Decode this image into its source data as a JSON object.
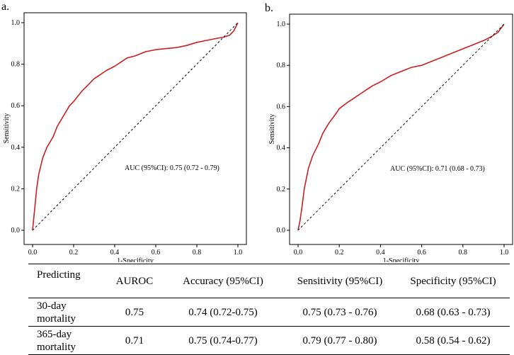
{
  "chart_data": [
    {
      "type": "line",
      "panel_label": "a.",
      "xlabel": "1-Specificity",
      "ylabel": "Sensitivity",
      "xlim": [
        0,
        1
      ],
      "ylim": [
        0,
        1
      ],
      "xticks": [
        "0.0",
        "0.2",
        "0.4",
        "0.6",
        "0.8",
        "1.0"
      ],
      "yticks": [
        "0.0",
        "0.2",
        "0.4",
        "0.6",
        "0.8",
        "1.0"
      ],
      "annotation": "AUC (95%CI): 0.75 (0.72 - 0.79)",
      "series": [
        {
          "name": "ROC",
          "color": "#cc1f1f",
          "x": [
            0,
            0.01,
            0.02,
            0.03,
            0.05,
            0.07,
            0.1,
            0.12,
            0.15,
            0.18,
            0.2,
            0.24,
            0.27,
            0.3,
            0.33,
            0.36,
            0.4,
            0.43,
            0.46,
            0.5,
            0.55,
            0.6,
            0.65,
            0.7,
            0.75,
            0.8,
            0.85,
            0.9,
            0.93,
            0.96,
            0.98,
            1.0
          ],
          "y": [
            0,
            0.1,
            0.2,
            0.27,
            0.35,
            0.4,
            0.45,
            0.5,
            0.55,
            0.6,
            0.62,
            0.67,
            0.7,
            0.73,
            0.75,
            0.77,
            0.79,
            0.81,
            0.83,
            0.84,
            0.86,
            0.87,
            0.875,
            0.88,
            0.89,
            0.905,
            0.915,
            0.925,
            0.93,
            0.94,
            0.96,
            1.0
          ]
        },
        {
          "name": "Reference",
          "color": "#000000",
          "dashed": true,
          "x": [
            0,
            1
          ],
          "y": [
            0,
            1
          ]
        }
      ]
    },
    {
      "type": "line",
      "panel_label": "b.",
      "xlabel": "1-Specificity",
      "ylabel": "Sensitivity",
      "xlim": [
        0,
        1
      ],
      "ylim": [
        0,
        1
      ],
      "xticks": [
        "0.0",
        "0.2",
        "0.4",
        "0.6",
        "0.8",
        "1.0"
      ],
      "yticks": [
        "0.0",
        "0.2",
        "0.4",
        "0.6",
        "0.8",
        "1.0"
      ],
      "annotation": "AUC (95%CI): 0.71 (0.68 - 0.73)",
      "series": [
        {
          "name": "ROC",
          "color": "#cc1f1f",
          "x": [
            0,
            0.01,
            0.02,
            0.03,
            0.05,
            0.07,
            0.1,
            0.12,
            0.15,
            0.18,
            0.2,
            0.24,
            0.27,
            0.3,
            0.33,
            0.36,
            0.4,
            0.45,
            0.5,
            0.55,
            0.6,
            0.65,
            0.7,
            0.75,
            0.8,
            0.85,
            0.9,
            0.94,
            0.97,
            1.0
          ],
          "y": [
            0,
            0.05,
            0.12,
            0.2,
            0.3,
            0.36,
            0.42,
            0.47,
            0.52,
            0.56,
            0.59,
            0.62,
            0.64,
            0.66,
            0.68,
            0.7,
            0.72,
            0.75,
            0.77,
            0.79,
            0.8,
            0.82,
            0.84,
            0.86,
            0.88,
            0.9,
            0.92,
            0.94,
            0.96,
            1.0
          ]
        },
        {
          "name": "Reference",
          "color": "#000000",
          "dashed": true,
          "x": [
            0,
            1
          ],
          "y": [
            0,
            1
          ]
        }
      ]
    }
  ],
  "table": {
    "headers": {
      "predicting": "Predicting",
      "auroc": "AUROC",
      "accuracy": "Accuracy (95%CI)",
      "sensitivity": "Sensitivity (95%CI)",
      "specificity": "Specificity (95%CI)"
    },
    "rows": [
      {
        "predicting": "30-day mortality",
        "auroc": "0.75",
        "accuracy": "0.74 (0.72-0.75)",
        "sensitivity": "0.75 (0.73 - 0.76)",
        "specificity": "0.68 (0.63 - 0.73)"
      },
      {
        "predicting": "365-day mortality",
        "auroc": "0.71",
        "accuracy": "0.75 (0.74-0.77)",
        "sensitivity": "0.79 (0.77 - 0.80)",
        "specificity": "0.58 (0.54 - 0.62)"
      }
    ]
  }
}
